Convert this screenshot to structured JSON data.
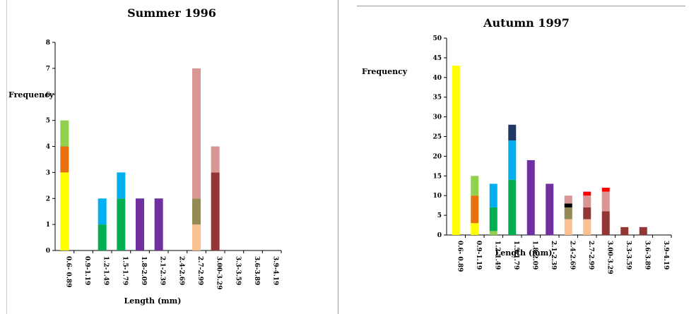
{
  "chart_data": [
    {
      "type": "bar",
      "stacked": true,
      "title": "Summer 1996",
      "xlabel": "Length (mm)",
      "ylabel": "Frequency",
      "ylim": [
        0,
        8
      ],
      "yticks": [
        0,
        1,
        2,
        3,
        4,
        5,
        6,
        7,
        8
      ],
      "categories": [
        "0.6- 0.89",
        "0.9-1.19",
        "1.2-1.49",
        "1.5-1.79",
        "1.8-2.09",
        "2.1-2.39",
        "2.4-2.69",
        "2.7-2.99",
        "3.00-3.29",
        "3.3-3.59",
        "3.6-3.89",
        "3.9-4.19"
      ],
      "stacks": [
        [
          {
            "value": 3,
            "color": "#ffff00"
          },
          {
            "value": 1,
            "color": "#e8700e"
          },
          {
            "value": 1,
            "color": "#92d050"
          }
        ],
        [],
        [
          {
            "value": 1,
            "color": "#00b050"
          },
          {
            "value": 1,
            "color": "#00b0f0"
          }
        ],
        [
          {
            "value": 2,
            "color": "#00b050"
          },
          {
            "value": 1,
            "color": "#00b0f0"
          }
        ],
        [
          {
            "value": 2,
            "color": "#7030a0"
          }
        ],
        [
          {
            "value": 2,
            "color": "#7030a0"
          }
        ],
        [],
        [
          {
            "value": 1,
            "color": "#fac090"
          },
          {
            "value": 1,
            "color": "#948a54"
          },
          {
            "value": 5,
            "color": "#d99694"
          }
        ],
        [
          {
            "value": 3,
            "color": "#943634"
          },
          {
            "value": 1,
            "color": "#d99694"
          }
        ],
        [],
        [],
        []
      ]
    },
    {
      "type": "bar",
      "stacked": true,
      "title": "Autumn 1997",
      "xlabel": "Length (mm)",
      "ylabel": "Frequency",
      "ylim": [
        0,
        50
      ],
      "yticks": [
        0,
        5,
        10,
        15,
        20,
        25,
        30,
        35,
        40,
        45,
        50
      ],
      "categories": [
        "0.6- 0.89",
        "0.9-1.19",
        "1.2-1.49",
        "1.5-1.79",
        "1.8-2.09",
        "2.1-2.39",
        "2.4-2.69",
        "2.7-2.99",
        "3.00-3.29",
        "3.3-3.59",
        "3.6-3.89",
        "3.9-4.19"
      ],
      "stacks": [
        [
          {
            "value": 43,
            "color": "#ffff00"
          }
        ],
        [
          {
            "value": 3,
            "color": "#ffff00"
          },
          {
            "value": 7,
            "color": "#e8700e"
          },
          {
            "value": 5,
            "color": "#92d050"
          }
        ],
        [
          {
            "value": 1,
            "color": "#92d050"
          },
          {
            "value": 6,
            "color": "#00b050"
          },
          {
            "value": 6,
            "color": "#00b0f0"
          }
        ],
        [
          {
            "value": 14,
            "color": "#00b050"
          },
          {
            "value": 10,
            "color": "#00b0f0"
          },
          {
            "value": 4,
            "color": "#1f3864"
          }
        ],
        [
          {
            "value": 19,
            "color": "#7030a0"
          }
        ],
        [
          {
            "value": 13,
            "color": "#7030a0"
          }
        ],
        [
          {
            "value": 4,
            "color": "#fac090"
          },
          {
            "value": 3,
            "color": "#948a54"
          },
          {
            "value": 1,
            "color": "#000000"
          },
          {
            "value": 2,
            "color": "#d99694"
          }
        ],
        [
          {
            "value": 4,
            "color": "#fac090"
          },
          {
            "value": 3,
            "color": "#943634"
          },
          {
            "value": 3,
            "color": "#d99694"
          },
          {
            "value": 1,
            "color": "#ff0000"
          }
        ],
        [
          {
            "value": 6,
            "color": "#943634"
          },
          {
            "value": 5,
            "color": "#d99694"
          },
          {
            "value": 1,
            "color": "#ff0000"
          }
        ],
        [
          {
            "value": 2,
            "color": "#943634"
          }
        ],
        [
          {
            "value": 2,
            "color": "#943634"
          }
        ],
        []
      ]
    }
  ]
}
